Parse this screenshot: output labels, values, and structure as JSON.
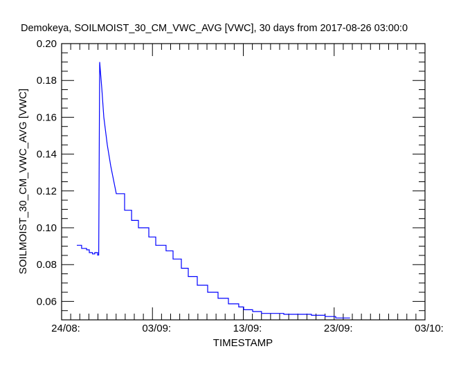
{
  "chart_data": {
    "type": "line",
    "title": "Demokeya, SOILMOIST_30_CM_VWC_AVG [VWC], 30 days from  2017-08-26 03:00:0",
    "xlabel": "TIMESTAMP",
    "ylabel": "SOILMOIST_30_CM_VWC_AVG [VWC]",
    "x_units": "days since 24/08",
    "xlim": [
      0,
      40
    ],
    "ylim": [
      0.05,
      0.2
    ],
    "x_major_step": 10,
    "x_minor_step": 1,
    "y_major_step": 0.02,
    "y_minor_step": 0.005,
    "x_ticks": [
      {
        "value": 0,
        "label": "24/08:"
      },
      {
        "value": 10,
        "label": "03/09:"
      },
      {
        "value": 20,
        "label": "13/09:"
      },
      {
        "value": 30,
        "label": "23/09:"
      },
      {
        "value": 40,
        "label": "03/10:"
      }
    ],
    "y_ticks": [
      {
        "value": 0.06,
        "label": "0.06"
      },
      {
        "value": 0.08,
        "label": "0.08"
      },
      {
        "value": 0.1,
        "label": "0.10"
      },
      {
        "value": 0.12,
        "label": "0.12"
      },
      {
        "value": 0.14,
        "label": "0.14"
      },
      {
        "value": 0.16,
        "label": "0.16"
      },
      {
        "value": 0.18,
        "label": "0.18"
      },
      {
        "value": 0.2,
        "label": "0.20"
      }
    ],
    "grid": false,
    "series": [
      {
        "name": "SOILMOIST_30_CM_VWC_AVG",
        "color": "#0000ff",
        "x": [
          1.68,
          2.2,
          2.75,
          3.05,
          3.4,
          3.65,
          3.96,
          4.08,
          4.19,
          4.42,
          4.65,
          5.03,
          5.41,
          6.02,
          6.93,
          7.7,
          8.46,
          9.6,
          10.36,
          11.5,
          12.27,
          13.18,
          13.94,
          14.93,
          16.08,
          17.22,
          18.36,
          19.5,
          20.04,
          21.03,
          22.0,
          24.46,
          27.5,
          29.0,
          30.17,
          31.7
        ],
        "y": [
          0.0905,
          0.0888,
          0.088,
          0.0865,
          0.0858,
          0.0865,
          0.0852,
          0.0852,
          0.19,
          0.176,
          0.16,
          0.145,
          0.1335,
          0.1185,
          0.1095,
          0.104,
          0.1,
          0.095,
          0.0905,
          0.0875,
          0.083,
          0.078,
          0.0735,
          0.0688,
          0.065,
          0.0617,
          0.0587,
          0.057,
          0.0555,
          0.0545,
          0.0535,
          0.053,
          0.0525,
          0.0518,
          0.051,
          0.0512
        ]
      }
    ]
  }
}
